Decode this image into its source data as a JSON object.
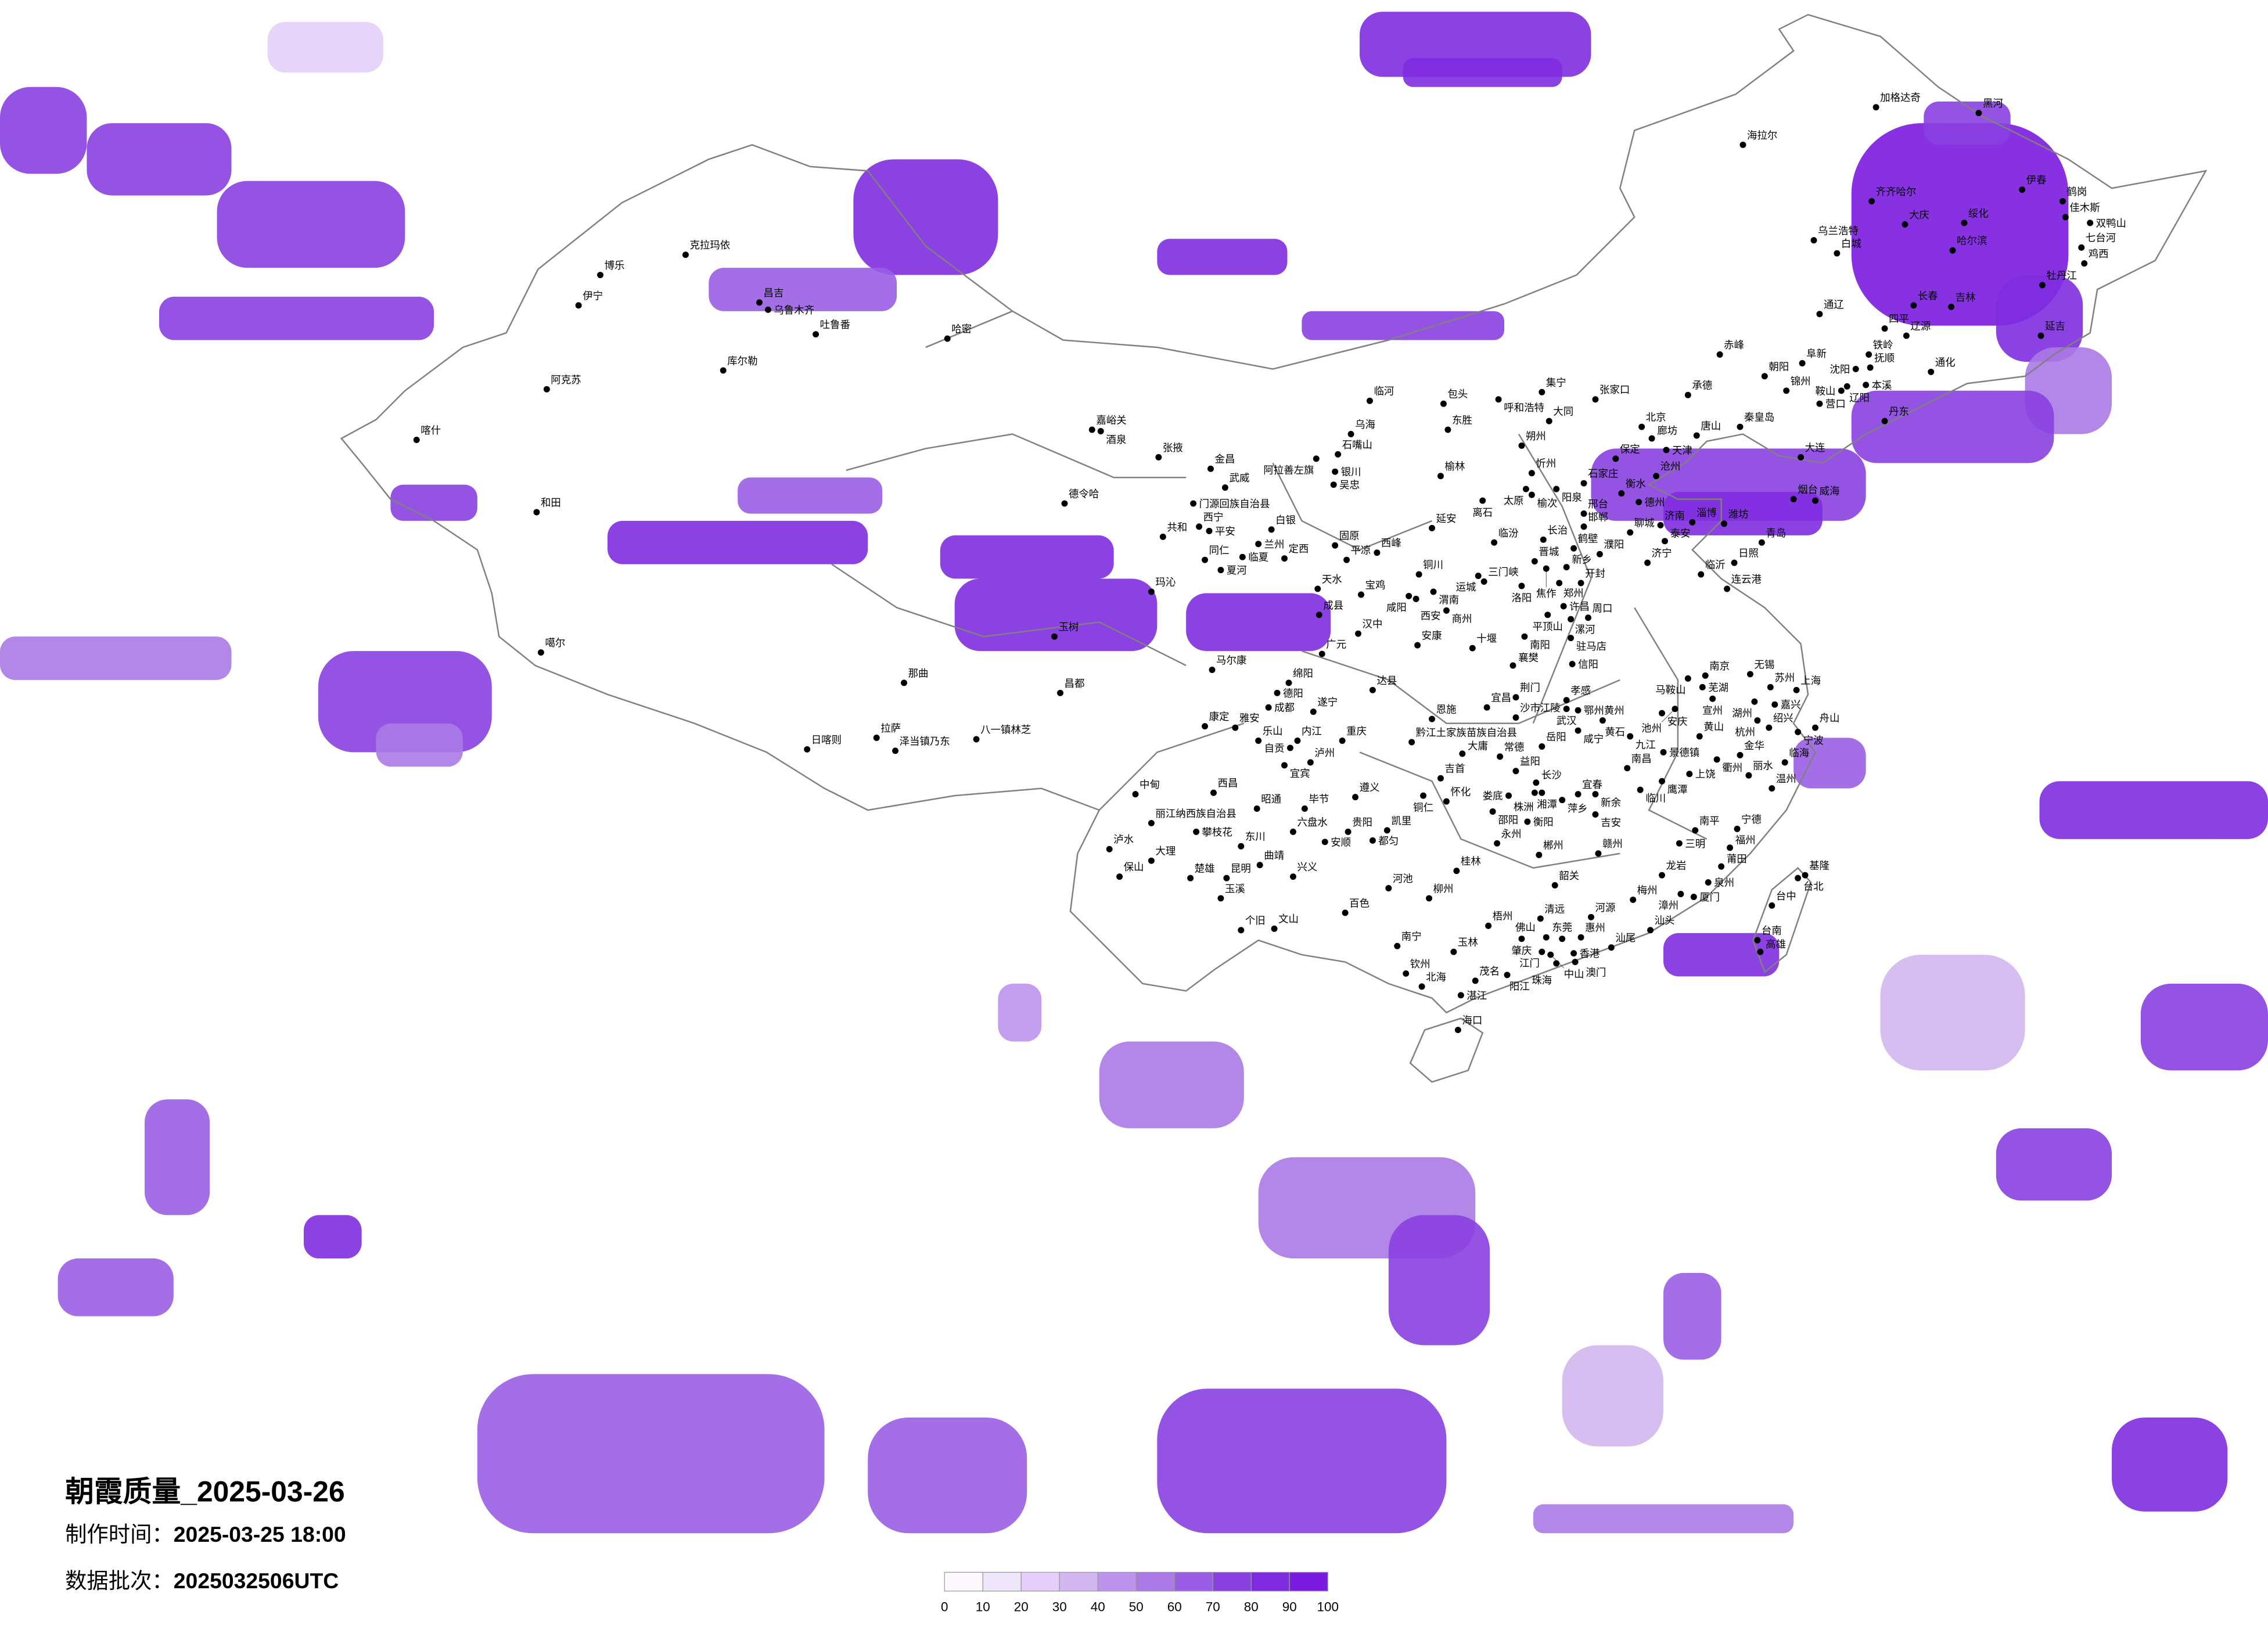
{
  "title": "朝霞质量_2025-03-26",
  "production_time": {
    "label": "制作时间：",
    "value": "2025-03-25 18:00"
  },
  "data_batch": {
    "label": "数据批次：",
    "value": "2025032506UTC"
  },
  "colorbar": {
    "ticks": [
      "0",
      "10",
      "20",
      "30",
      "40",
      "50",
      "60",
      "70",
      "80",
      "90",
      "100"
    ],
    "colors": [
      "#fcf8fe",
      "#f0e6fb",
      "#e3cffa",
      "#d2b7f0",
      "#bd94ec",
      "#ab7ae4",
      "#9a5ee4",
      "#8a40e0",
      "#7f2ce0",
      "#7a1be0"
    ]
  },
  "border_color": "#808080",
  "cities": [
    "北京",
    "廊坊",
    "天津",
    "保定",
    "石家庄",
    "沧州",
    "衡水",
    "唐山",
    "秦皇岛",
    "承德",
    "张家口",
    "大连",
    "丹东",
    "沈阳",
    "锦州",
    "营口",
    "济南",
    "青岛",
    "烟台",
    "威海",
    "潍坊",
    "淄博",
    "泰安",
    "临沂",
    "日照",
    "连云港",
    "济宁",
    "邯郸",
    "邢台",
    "聊城",
    "德州",
    "克拉玛依",
    "博乐",
    "伊宁",
    "昌吉",
    "乌鲁木齐",
    "吐鲁番",
    "哈密",
    "库尔勒",
    "阿克苏",
    "和田",
    "德令哈",
    "嘉峪关",
    "酒泉",
    "喀什",
    "噶尔",
    "那曲",
    "昌都",
    "玉树",
    "拉萨",
    "日喀则",
    "泽当镇乃东",
    "八一镇林芝",
    "临河",
    "包头",
    "呼和浩特",
    "集宁",
    "大同",
    "东胜",
    "乌海",
    "石嘴山",
    "阿拉善左旗",
    "银川",
    "吴忠",
    "张掖",
    "金昌",
    "武威",
    "门源回族自治县",
    "西宁",
    "平安",
    "共和",
    "兰州",
    "白银",
    "同仁",
    "临夏",
    "夏河",
    "定西",
    "固原",
    "平凉",
    "西峰",
    "榆林",
    "朔州",
    "忻州",
    "太原",
    "榆次",
    "阳泉",
    "离石",
    "延安",
    "临汾",
    "长治",
    "晋城",
    "焦作",
    "新乡",
    "鹤壁",
    "濮阳",
    "郑州",
    "开封",
    "洛阳",
    "三门峡",
    "运城",
    "铜川",
    "渭南",
    "咸阳",
    "西安",
    "宝鸡",
    "天水",
    "玛沁",
    "成县",
    "汉中",
    "商州",
    "安康",
    "十堰",
    "许昌",
    "平顶山",
    "漯河",
    "周口",
    "南阳",
    "驻马店",
    "信阳",
    "襄樊",
    "马尔康",
    "广元",
    "绵阳",
    "德阳",
    "成都",
    "达县",
    "遂宁",
    "康定",
    "雅安",
    "乐山",
    "自贡",
    "内江",
    "重庆",
    "宜宾",
    "泸州",
    "恩施",
    "宜昌",
    "荆门",
    "沙市江陵",
    "孝感",
    "武汉",
    "鄂州黄州",
    "黄石",
    "咸宁",
    "黔江土家族苗族自治县",
    "岳阳",
    "常德",
    "大庸",
    "益阳",
    "长沙",
    "湘潭",
    "株洲",
    "萍乡",
    "宜春",
    "新余",
    "吉安",
    "娄底",
    "邵阳",
    "衡阳",
    "永州",
    "郴州",
    "赣州",
    "韶关",
    "桂林",
    "河池",
    "柳州",
    "吉首",
    "铜仁",
    "怀化",
    "遵义",
    "毕节",
    "昭通",
    "六盘水",
    "贵阳",
    "安顺",
    "都匀",
    "凯里",
    "东川",
    "曲靖",
    "兴义",
    "昆明",
    "楚雄",
    "大理",
    "保山",
    "泸水",
    "丽江纳西族自治县",
    "攀枝花",
    "中甸",
    "西昌",
    "玉溪",
    "南京",
    "无锡",
    "苏州",
    "上海",
    "湖州",
    "嘉兴",
    "杭州",
    "绍兴",
    "宁波",
    "舟山",
    "马鞍山",
    "芜湖",
    "宣州",
    "安庆",
    "池州",
    "黄山",
    "九江",
    "景德镇",
    "衢州",
    "金华",
    "南昌",
    "上饶",
    "鹰潭",
    "临川",
    "丽水",
    "临海",
    "温州",
    "南平",
    "宁德",
    "三明",
    "福州",
    "莆田",
    "泉州",
    "龙岩",
    "漳州",
    "厦门",
    "梅州",
    "汕头",
    "汕尾",
    "河源",
    "惠州",
    "清远",
    "东莞",
    "佛山",
    "肇庆",
    "江门",
    "中山",
    "香港",
    "珠海",
    "澳门",
    "阳江",
    "茂名",
    "湛江",
    "海口",
    "北海",
    "钦州",
    "南宁",
    "玉林",
    "梧州",
    "百色",
    "个旧",
    "文山",
    "台北",
    "基隆",
    "台中",
    "台南",
    "高雄",
    "加格达奇",
    "海拉尔",
    "黑河",
    "伊春",
    "鹤岗",
    "佳木斯",
    "双鸭山",
    "七台河",
    "鸡西",
    "齐齐哈尔",
    "大庆",
    "绥化",
    "哈尔滨",
    "乌兰浩特",
    "白城",
    "牡丹江",
    "长春",
    "吉林",
    "延吉",
    "通辽",
    "四平",
    "辽源",
    "赤峰",
    "铁岭",
    "阜新",
    "朝阳",
    "抚顺",
    "通化",
    "本溪",
    "辽阳",
    "鞍山"
  ]
}
